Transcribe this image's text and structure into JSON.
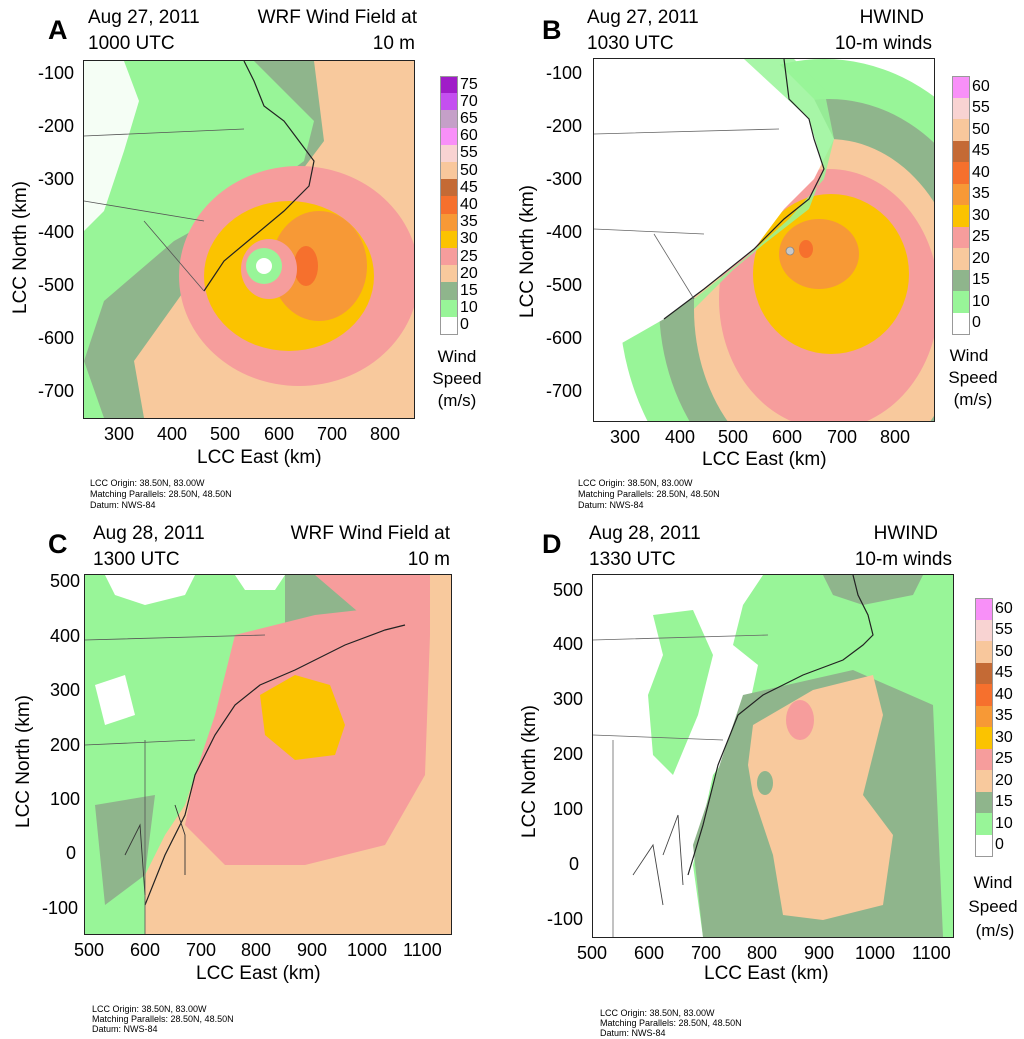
{
  "figure": {
    "common": {
      "xlabel": "LCC East (km)",
      "ylabel": "LCC North (km)",
      "legend_title": [
        "Wind",
        "Speed",
        "(m/s)"
      ],
      "footnote": [
        "LCC Origin: 38.50N, 83.00W",
        "Matching Parallels: 28.50N, 48.50N",
        "Datum: NWS-84"
      ]
    },
    "colors": {
      "0": "#ffffff",
      "10": "#98f598",
      "15": "#8fb58c",
      "20": "#f8c99d",
      "25": "#f69d9c",
      "30": "#fbc300",
      "35": "#f79936",
      "40": "#f6702d",
      "45": "#c46a35",
      "50": "#f8c79c",
      "55": "#f8d3d2",
      "60": "#f890f8",
      "65": "#c5a0c8",
      "70": "#c44ff0",
      "75": "#a01cc8"
    }
  },
  "chart_data": [
    {
      "type": "heatmap",
      "panel": "A",
      "title": "WRF Wind Field at 10 m",
      "title_lines": [
        "WRF Wind Field at",
        "10 m"
      ],
      "date": "Aug 27, 2011",
      "time": "1000 UTC",
      "xlabel": "LCC East (km)",
      "ylabel": "LCC North (km)",
      "xlim": [
        230,
        850
      ],
      "ylim": [
        -750,
        -70
      ],
      "xticks": [
        300,
        400,
        500,
        600,
        700,
        800
      ],
      "yticks": [
        -100,
        -200,
        -300,
        -400,
        -500,
        -600,
        -700
      ],
      "legend": [
        0,
        10,
        15,
        20,
        25,
        30,
        35,
        40,
        45,
        50,
        55,
        60,
        65,
        70,
        75
      ],
      "legend_unit": "m/s",
      "storm_center_km": [
        575,
        -465
      ]
    },
    {
      "type": "heatmap",
      "panel": "B",
      "title": "HWIND 10-m winds",
      "title_lines": [
        "HWIND",
        "10-m winds"
      ],
      "date": "Aug 27, 2011",
      "time": "1030 UTC",
      "xlabel": "LCC East (km)",
      "ylabel": "LCC North (km)",
      "xlim": [
        230,
        850
      ],
      "ylim": [
        -750,
        -70
      ],
      "xticks": [
        300,
        400,
        500,
        600,
        700,
        800
      ],
      "yticks": [
        -100,
        -200,
        -300,
        -400,
        -500,
        -600,
        -700
      ],
      "legend": [
        0,
        10,
        15,
        20,
        25,
        30,
        35,
        40,
        45,
        50,
        55,
        60
      ],
      "legend_unit": "m/s",
      "storm_center_km": [
        580,
        -430
      ]
    },
    {
      "type": "heatmap",
      "panel": "C",
      "title": "WRF Wind Field at 10 m",
      "title_lines": [
        "WRF Wind Field at",
        "10 m"
      ],
      "date": "Aug 28, 2011",
      "time": "1300 UTC",
      "xlabel": "LCC East (km)",
      "ylabel": "LCC North (km)",
      "xlim": [
        490,
        1140
      ],
      "ylim": [
        -130,
        530
      ],
      "xticks": [
        500,
        600,
        700,
        800,
        900,
        1000,
        1100
      ],
      "yticks": [
        500,
        400,
        300,
        200,
        100,
        0,
        -100
      ],
      "legend": [],
      "legend_unit": "m/s"
    },
    {
      "type": "heatmap",
      "panel": "D",
      "title": "HWIND 10-m winds",
      "title_lines": [
        "HWIND",
        "10-m winds"
      ],
      "date": "Aug 28, 2011",
      "time": "1330 UTC",
      "xlabel": "LCC East (km)",
      "ylabel": "LCC North (km)",
      "xlim": [
        490,
        1140
      ],
      "ylim": [
        -130,
        530
      ],
      "xticks": [
        500,
        600,
        700,
        800,
        900,
        1000,
        1100
      ],
      "yticks": [
        500,
        400,
        300,
        200,
        100,
        0,
        -100
      ],
      "legend": [
        0,
        10,
        15,
        20,
        25,
        30,
        35,
        40,
        45,
        50,
        55,
        60
      ],
      "legend_unit": "m/s"
    }
  ]
}
